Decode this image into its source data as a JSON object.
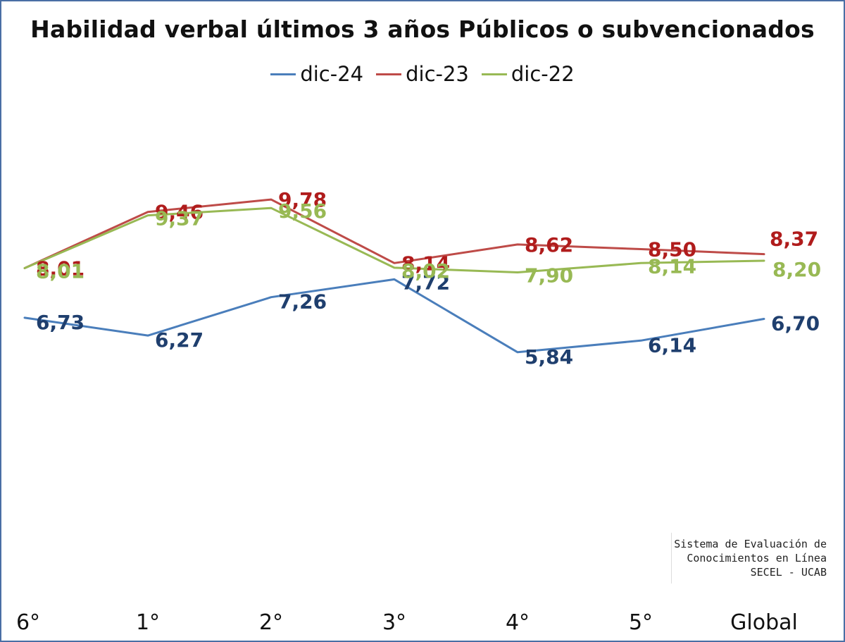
{
  "chart_data": {
    "type": "line",
    "title": "Habilidad verbal últimos 3 años Públicos o subvencionados",
    "categories": [
      "6°",
      "1°",
      "2°",
      "3°",
      "4°",
      "5°",
      "Global"
    ],
    "series": [
      {
        "name": "dic-24",
        "color": "#4a7ebb",
        "label_color": "#1f3f6e",
        "values": [
          6.73,
          6.27,
          7.26,
          7.72,
          5.84,
          6.14,
          6.7
        ],
        "labels": [
          "6,73",
          "6,27",
          "7,26",
          "7,72",
          "5,84",
          "6,14",
          "6,70"
        ]
      },
      {
        "name": "dic-23",
        "color": "#be4b48",
        "label_color": "#b01c1c",
        "values": [
          8.01,
          9.46,
          9.78,
          8.14,
          8.62,
          8.5,
          8.37
        ],
        "labels": [
          "8,01",
          "9,46",
          "9,78",
          "8,14",
          "8,62",
          "8,50",
          "8,37"
        ]
      },
      {
        "name": "dic-22",
        "color": "#98b954",
        "label_color": "#98b954",
        "values": [
          8.01,
          9.37,
          9.56,
          8.02,
          7.9,
          8.14,
          8.2
        ],
        "labels": [
          "8,01",
          "9,37",
          "9,56",
          "8,02",
          "7,90",
          "8,14",
          "8,20"
        ]
      }
    ],
    "legend_position": "top-center",
    "grid": false
  },
  "credit": {
    "line1": "Sistema de Evaluación de",
    "line2": "Conocimientos en Línea",
    "line3": "SECEL - UCAB"
  }
}
